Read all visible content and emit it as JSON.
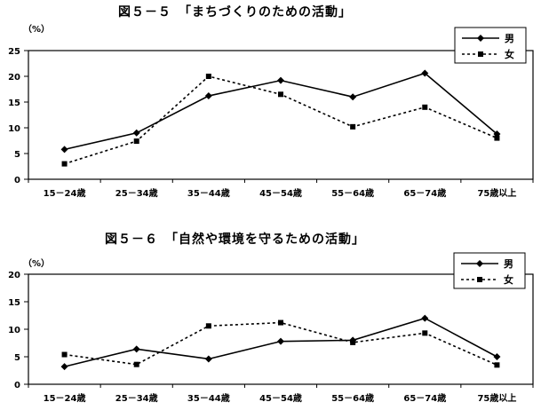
{
  "chart_data": [
    {
      "type": "line",
      "title": "図５－５　「まちづくりのための活動」",
      "unit": "（%）",
      "categories": [
        "15－24歳",
        "25－34歳",
        "35－44歳",
        "45－54歳",
        "55－64歳",
        "65－74歳",
        "75歳以上"
      ],
      "ylim": [
        0,
        25
      ],
      "yticks": [
        0,
        5,
        10,
        15,
        20,
        25
      ],
      "grid": false,
      "legend": "top-right",
      "series": [
        {
          "name": "男",
          "style": "solid-diamond",
          "color": "#000000",
          "values": [
            5.8,
            9.0,
            16.2,
            19.2,
            16.0,
            20.6,
            8.8
          ]
        },
        {
          "name": "女",
          "style": "dashed-square",
          "color": "#000000",
          "values": [
            3.0,
            7.4,
            20.0,
            16.5,
            10.2,
            14.0,
            8.0
          ]
        }
      ]
    },
    {
      "type": "line",
      "title": "図５－６　「自然や環境を守るための活動」",
      "unit": "（%）",
      "categories": [
        "15－24歳",
        "25－34歳",
        "35－44歳",
        "45－54歳",
        "55－64歳",
        "65－74歳",
        "75歳以上"
      ],
      "ylim": [
        0,
        20
      ],
      "yticks": [
        0,
        5,
        10,
        15,
        20
      ],
      "grid": false,
      "legend": "top-right",
      "series": [
        {
          "name": "男",
          "style": "solid-diamond",
          "color": "#000000",
          "values": [
            3.2,
            6.4,
            4.6,
            7.8,
            8.0,
            12.0,
            5.0
          ]
        },
        {
          "name": "女",
          "style": "dashed-square",
          "color": "#000000",
          "values": [
            5.4,
            3.6,
            10.6,
            11.2,
            7.6,
            9.3,
            3.5
          ]
        }
      ]
    }
  ]
}
